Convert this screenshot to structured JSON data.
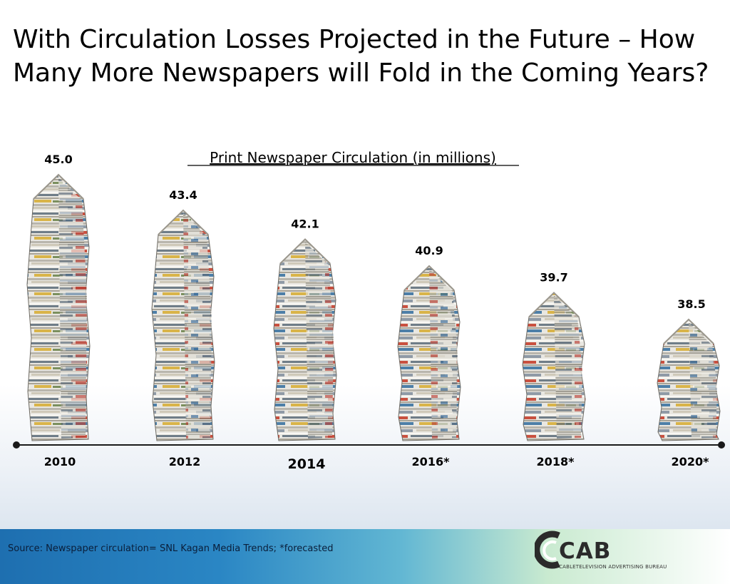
{
  "slide": {
    "title": "With Circulation Losses Projected in the Future – How Many More Newspapers will Fold in the Coming Years?",
    "source": "Source: Newspaper circulation= SNL Kagan Media Trends; *forecasted"
  },
  "logo": {
    "name": "CAB",
    "subtitle": "CABLETELEVISION ADVERTISING BUREAU"
  },
  "chart_data": {
    "type": "bar",
    "title": "Print Newspaper Circulation (in millions)",
    "categories": [
      "2010",
      "2012",
      "2014",
      "2016*",
      "2018*",
      "2020*"
    ],
    "values": [
      45.0,
      43.4,
      42.1,
      40.9,
      39.7,
      38.5
    ],
    "value_labels": [
      "45.0",
      "43.4",
      "42.1",
      "40.9",
      "39.7",
      "38.5"
    ],
    "highlight_category": "2014",
    "bar_style": "newspaper stacks",
    "xlabel": "",
    "ylabel": "",
    "grid": false,
    "colors": {
      "highlight": "#d0141b",
      "axis": "#1a1a1a"
    }
  }
}
